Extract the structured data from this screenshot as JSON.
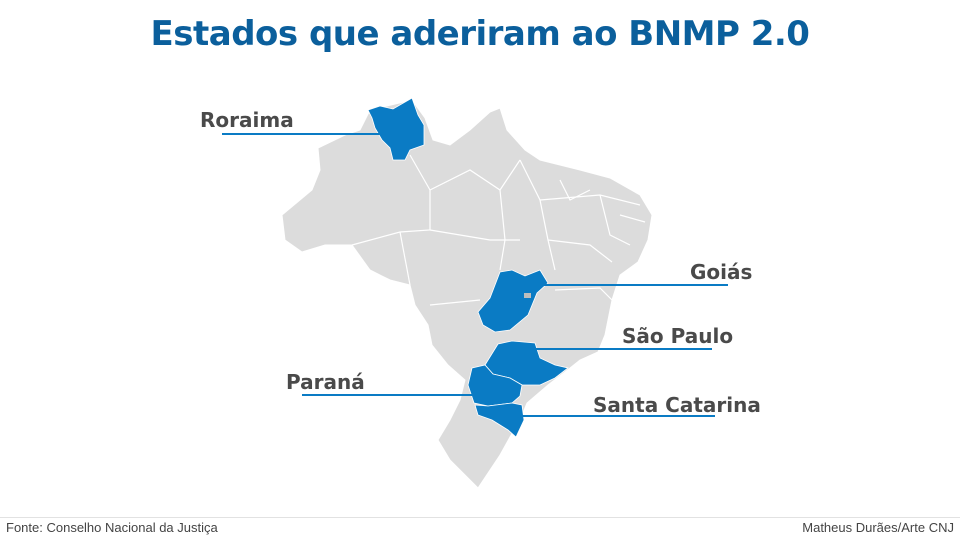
{
  "title": "Estados que aderiram ao BNMP 2.0",
  "highlight_color": "#0a7bc4",
  "base_color": "#dcdcdc",
  "title_color": "#0b5f9c",
  "states": {
    "roraima": "Roraima",
    "goias": "Goiás",
    "sao_paulo": "São Paulo",
    "parana": "Paraná",
    "santa_catarina": "Santa Catarina"
  },
  "footer": {
    "source": "Fonte: Conselho Nacional da Justiça",
    "credit": "Matheus Durães/Arte CNJ"
  }
}
